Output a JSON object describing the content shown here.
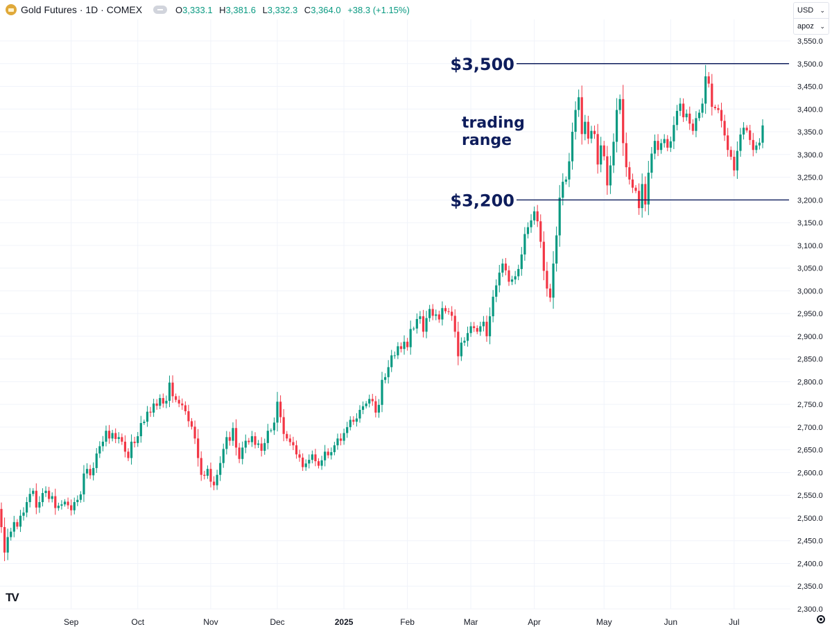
{
  "header": {
    "title": "Gold Futures · 1D · COMEX",
    "ohlc": [
      {
        "key": "O",
        "value": "3,333.1"
      },
      {
        "key": "H",
        "value": "3,381.6"
      },
      {
        "key": "L",
        "value": "3,332.3"
      },
      {
        "key": "C",
        "value": "3,364.0"
      }
    ],
    "change": "+38.3 (+1.15%)"
  },
  "currency": "USD",
  "unit": "apoz",
  "colors": {
    "up": "#089981",
    "down": "#f23645",
    "annotation": "#0e1d5c",
    "grid": "#f0f3fa",
    "axis_text": "#131722"
  },
  "chart_data": {
    "type": "candlestick",
    "title": "",
    "xlabel": "",
    "ylabel": "",
    "ylim": [
      2300,
      3550
    ],
    "grid": true,
    "y_ticks": [
      "3,550.0",
      "3,500.0",
      "3,450.0",
      "3,400.0",
      "3,350.0",
      "3,300.0",
      "3,250.0",
      "3,200.0",
      "3,150.0",
      "3,100.0",
      "3,050.0",
      "3,000.0",
      "2,950.0",
      "2,900.0",
      "2,850.0",
      "2,800.0",
      "2,750.0",
      "2,700.0",
      "2,650.0",
      "2,600.0",
      "2,550.0",
      "2,500.0",
      "2,450.0",
      "2,400.0",
      "2,350.0",
      "2,300.0"
    ],
    "x_ticks": [
      {
        "label": "Sep",
        "index": 22
      },
      {
        "label": "Oct",
        "index": 43
      },
      {
        "label": "Nov",
        "index": 66
      },
      {
        "label": "Dec",
        "index": 87
      },
      {
        "label": "2025",
        "index": 108
      },
      {
        "label": "Feb",
        "index": 128
      },
      {
        "label": "Mar",
        "index": 148
      },
      {
        "label": "Apr",
        "index": 168
      },
      {
        "label": "May",
        "index": 190
      },
      {
        "label": "Jun",
        "index": 211
      },
      {
        "label": "Jul",
        "index": 231
      }
    ],
    "closes": [
      2480,
      2424,
      2458,
      2470,
      2491,
      2481,
      2505,
      2512,
      2535,
      2553,
      2560,
      2523,
      2535,
      2555,
      2560,
      2542,
      2548,
      2522,
      2527,
      2530,
      2536,
      2528,
      2517,
      2535,
      2540,
      2552,
      2598,
      2608,
      2594,
      2610,
      2642,
      2658,
      2668,
      2692,
      2675,
      2687,
      2674,
      2678,
      2668,
      2646,
      2632,
      2668,
      2665,
      2680,
      2709,
      2712,
      2734,
      2732,
      2752,
      2747,
      2764,
      2752,
      2758,
      2798,
      2768,
      2760,
      2752,
      2748,
      2735,
      2713,
      2701,
      2675,
      2632,
      2595,
      2593,
      2608,
      2580,
      2572,
      2595,
      2621,
      2652,
      2678,
      2670,
      2698,
      2655,
      2630,
      2655,
      2670,
      2667,
      2680,
      2661,
      2664,
      2648,
      2665,
      2692,
      2693,
      2710,
      2756,
      2722,
      2685,
      2675,
      2667,
      2660,
      2640,
      2633,
      2612,
      2620,
      2628,
      2640,
      2625,
      2615,
      2627,
      2646,
      2638,
      2645,
      2660,
      2675,
      2670,
      2687,
      2700,
      2716,
      2712,
      2719,
      2738,
      2746,
      2752,
      2762,
      2757,
      2732,
      2749,
      2804,
      2810,
      2832,
      2858,
      2858,
      2878,
      2872,
      2888,
      2876,
      2916,
      2917,
      2938,
      2944,
      2910,
      2940,
      2960,
      2945,
      2948,
      2937,
      2962,
      2955,
      2954,
      2945,
      2910,
      2856,
      2886,
      2890,
      2907,
      2922,
      2918,
      2910,
      2922,
      2932,
      2900,
      2944,
      2987,
      3012,
      3040,
      3060,
      3045,
      3020,
      3025,
      3032,
      3048,
      3080,
      3125,
      3140,
      3155,
      3175,
      3153,
      3108,
      3044,
      3005,
      2985,
      3060,
      3122,
      3205,
      3240,
      3245,
      3285,
      3350,
      3398,
      3426,
      3345,
      3372,
      3335,
      3352,
      3345,
      3278,
      3320,
      3296,
      3232,
      3276,
      3328,
      3398,
      3422,
      3325,
      3272,
      3245,
      3227,
      3220,
      3182,
      3235,
      3190,
      3260,
      3302,
      3330,
      3310,
      3325,
      3334,
      3315,
      3329,
      3365,
      3396,
      3412,
      3382,
      3390,
      3368,
      3352,
      3380,
      3392,
      3412,
      3472,
      3456,
      3405,
      3402,
      3398,
      3374,
      3342,
      3310,
      3295,
      3265,
      3308,
      3344,
      3359,
      3353,
      3332,
      3310,
      3320,
      3326,
      3364
    ]
  },
  "annotations": {
    "upper_level": {
      "label": "$3,500",
      "value": 3500
    },
    "lower_level": {
      "label": "$3,200",
      "value": 3200
    },
    "range_line1": "trading",
    "range_line2": "range"
  },
  "branding": "TV"
}
